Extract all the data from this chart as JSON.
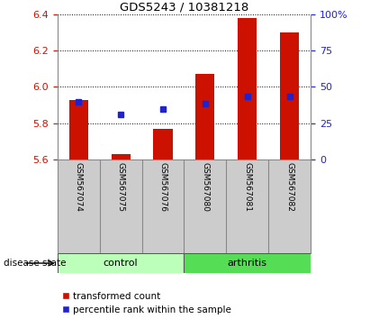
{
  "title": "GDS5243 / 10381218",
  "samples": [
    "GSM567074",
    "GSM567075",
    "GSM567076",
    "GSM567080",
    "GSM567081",
    "GSM567082"
  ],
  "groups": [
    "control",
    "control",
    "control",
    "arthritis",
    "arthritis",
    "arthritis"
  ],
  "red_bar_top": [
    5.93,
    5.63,
    5.77,
    6.07,
    6.38,
    6.3
  ],
  "red_bar_bottom": [
    5.6,
    5.6,
    5.6,
    5.6,
    5.6,
    5.6
  ],
  "blue_dot_y": [
    5.92,
    5.85,
    5.88,
    5.91,
    5.95,
    5.95
  ],
  "ylim": [
    5.6,
    6.4
  ],
  "y2lim": [
    0,
    100
  ],
  "yticks": [
    5.6,
    5.8,
    6.0,
    6.2,
    6.4
  ],
  "y2ticks": [
    0,
    25,
    50,
    75,
    100
  ],
  "y2tick_labels": [
    "0",
    "25",
    "50",
    "75",
    "100%"
  ],
  "bar_color": "#cc1100",
  "dot_color": "#2222cc",
  "control_color": "#bbffbb",
  "arthritis_color": "#55dd55",
  "label_bg_color": "#cccccc"
}
